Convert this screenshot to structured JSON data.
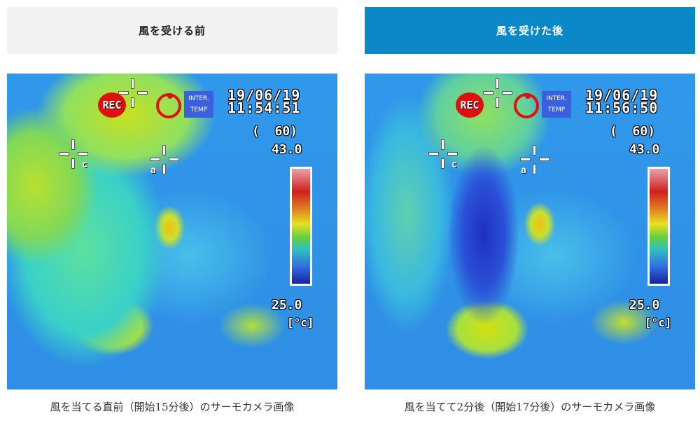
{
  "panels": [
    {
      "header": "風を受ける前",
      "header_bg": "#f2f2f2",
      "osd": {
        "rec": "REC",
        "inter": "INTER.",
        "temp": "TEMP",
        "date": "19/06/19",
        "time": "11:54:51",
        "emissivity": "(  60)",
        "max_temp": "43.0",
        "min_temp": "25.0",
        "unit": "[°c]",
        "cursor_c": "c",
        "cursor_a": "a"
      },
      "caption": "風を当てる直前（開始15分後）のサーモカメラ画像"
    },
    {
      "header": "風を受けた後",
      "header_bg": "#0a88c8",
      "osd": {
        "rec": "REC",
        "inter": "INTER.",
        "temp": "TEMP",
        "date": "19/06/19",
        "time": "11:56:50",
        "emissivity": "(  60)",
        "max_temp": "43.0",
        "min_temp": "25.0",
        "unit": "[°c]",
        "cursor_c": "c",
        "cursor_a": "a"
      },
      "caption": "風を当てて2分後（開始17分後）のサーモカメラ画像"
    }
  ]
}
